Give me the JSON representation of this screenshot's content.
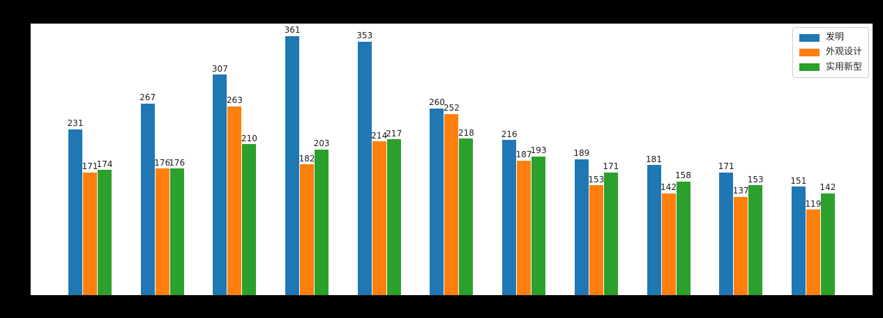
{
  "colors": {
    "figure_background": "#000000",
    "plot_background": "#ffffff",
    "bar_label_color": "#1a1a1a",
    "legend_border": "#cccccc",
    "series_blue": "#1f77b4",
    "series_orange": "#ff7f0e",
    "series_green": "#2ca02c"
  },
  "chart_data": {
    "type": "bar",
    "title": "",
    "xlabel": "",
    "ylabel": "",
    "n_groups": 11,
    "ylim": [
      0,
      378
    ],
    "grid": false,
    "legend_position": "upper right",
    "bar_value_labels_visible": true,
    "axis_tick_labels_visible": false,
    "series": [
      {
        "name": "发明",
        "color": "#1f77b4",
        "values": [
          231,
          267,
          307,
          361,
          353,
          260,
          216,
          189,
          181,
          171,
          151
        ]
      },
      {
        "name": "外观设计",
        "color": "#ff7f0e",
        "values": [
          171,
          176,
          263,
          182,
          214,
          252,
          187,
          153,
          142,
          137,
          119
        ]
      },
      {
        "name": "实用新型",
        "color": "#2ca02c",
        "values": [
          174,
          176,
          210,
          203,
          217,
          218,
          193,
          171,
          158,
          153,
          142
        ]
      }
    ]
  }
}
